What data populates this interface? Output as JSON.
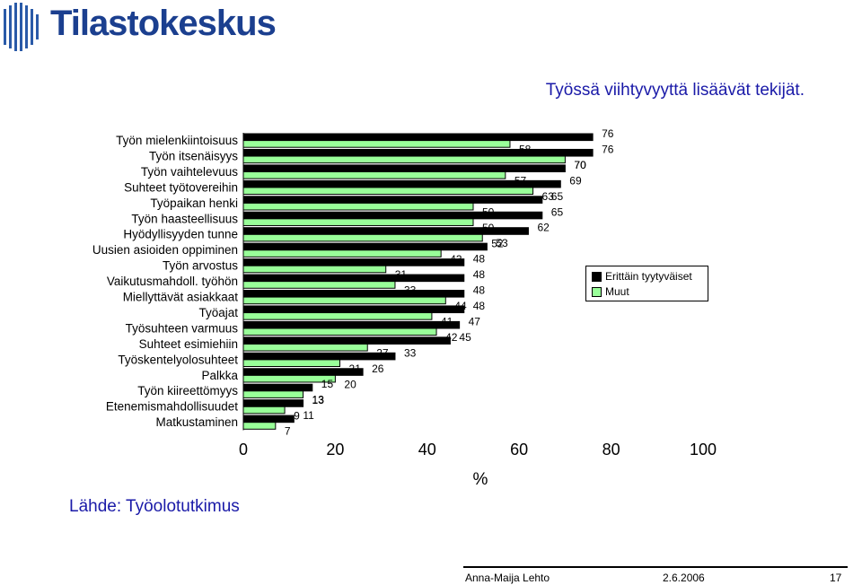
{
  "logo": {
    "text": "Tilastokeskus"
  },
  "title": "Työssä viihtyvyyttä lisäävät tekijät.",
  "source": "Lähde: Työolotutkimus",
  "footer": {
    "author": "Anna-Maija Lehto",
    "date": "2.6.2006",
    "page": "17"
  },
  "colors": {
    "series1": "#000000",
    "series2": "#99ff99",
    "title": "#1a1aa8"
  },
  "chart_data": {
    "type": "bar",
    "orientation": "horizontal",
    "categories": [
      "Työn mielenkiintoisuus",
      "Työn itsenäisyys",
      "Työn vaihtelevuus",
      "Suhteet työtovereihin",
      "Työpaikan henki",
      "Työn haasteellisuus",
      "Hyödyllisyyden tunne",
      "Uusien asioiden oppiminen",
      "Työn arvostus",
      "Vaikutusmahdoll. työhön",
      "Miellyttävät asiakkaat",
      "Työajat",
      "Työsuhteen varmuus",
      "Suhteet esimiehiin",
      "Työskentelyolosuhteet",
      "Palkka",
      "Työn kiireettömyys",
      "Etenemismahdollisuudet",
      "Matkustaminen"
    ],
    "series": [
      {
        "name": "Erittäin tyytyväiset",
        "values": [
          76,
          76,
          70,
          69,
          65,
          65,
          62,
          53,
          48,
          48,
          48,
          48,
          47,
          45,
          33,
          26,
          15,
          13,
          11
        ]
      },
      {
        "name": "Muut",
        "values": [
          58,
          70,
          57,
          63,
          50,
          50,
          52,
          43,
          31,
          33,
          44,
          41,
          42,
          27,
          21,
          20,
          13,
          9,
          7
        ]
      }
    ],
    "xlabel": "%",
    "xlim": [
      0,
      100
    ],
    "xticks": [
      "0",
      "20",
      "40",
      "60",
      "80",
      "100"
    ],
    "legend": "right"
  }
}
